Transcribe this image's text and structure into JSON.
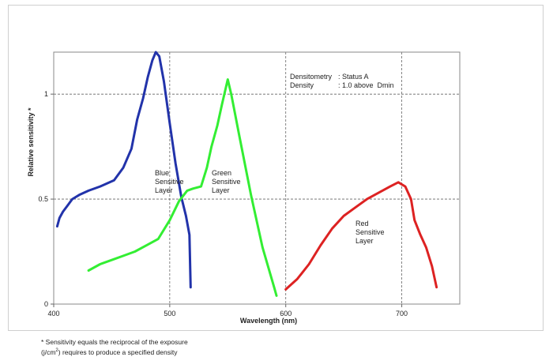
{
  "chart_data": {
    "type": "line",
    "xlabel": "Wavelength (nm)",
    "ylabel": "Relative sensitivity *",
    "xlim": [
      400,
      750
    ],
    "ylim": [
      0,
      1.2
    ],
    "x_ticks": [
      400,
      500,
      600,
      700
    ],
    "y_ticks": [
      0,
      0.5,
      1
    ],
    "y_tick_labels": [
      "0",
      "0.5",
      "1"
    ],
    "grid": "dashed at x=500,600,700 and y=0.5,1",
    "annotation": {
      "line1_label": "Densitometry",
      "line1_value": ": Status A",
      "line2_label": "Density",
      "line2_value": ": 1.0 above  Dmin"
    },
    "series": [
      {
        "label_lines": [
          "Blue",
          "Sensitive",
          "Layer"
        ],
        "color": "#2233aa",
        "points": [
          [
            403,
            0.37
          ],
          [
            405,
            0.41
          ],
          [
            408,
            0.44
          ],
          [
            412,
            0.47
          ],
          [
            416,
            0.5
          ],
          [
            422,
            0.52
          ],
          [
            430,
            0.54
          ],
          [
            440,
            0.56
          ],
          [
            452,
            0.59
          ],
          [
            460,
            0.65
          ],
          [
            467,
            0.74
          ],
          [
            472,
            0.88
          ],
          [
            477,
            0.98
          ],
          [
            481,
            1.08
          ],
          [
            485,
            1.16
          ],
          [
            488,
            1.2
          ],
          [
            491,
            1.18
          ],
          [
            495,
            1.06
          ],
          [
            500,
            0.86
          ],
          [
            505,
            0.67
          ],
          [
            510,
            0.51
          ],
          [
            514,
            0.42
          ],
          [
            517,
            0.33
          ],
          [
            518,
            0.08
          ]
        ]
      },
      {
        "label_lines": [
          "Green",
          "Sensitive",
          "Layer"
        ],
        "color": "#33ee33",
        "points": [
          [
            430,
            0.16
          ],
          [
            440,
            0.19
          ],
          [
            450,
            0.21
          ],
          [
            460,
            0.23
          ],
          [
            470,
            0.25
          ],
          [
            480,
            0.28
          ],
          [
            490,
            0.31
          ],
          [
            500,
            0.4
          ],
          [
            508,
            0.49
          ],
          [
            515,
            0.54
          ],
          [
            520,
            0.55
          ],
          [
            527,
            0.56
          ],
          [
            532,
            0.65
          ],
          [
            536,
            0.75
          ],
          [
            541,
            0.85
          ],
          [
            545,
            0.95
          ],
          [
            550,
            1.07
          ],
          [
            553,
            1.0
          ],
          [
            560,
            0.8
          ],
          [
            570,
            0.52
          ],
          [
            580,
            0.27
          ],
          [
            590,
            0.08
          ],
          [
            592,
            0.04
          ]
        ]
      },
      {
        "label_lines": [
          "Red",
          "Sensitive",
          "Layer"
        ],
        "color": "#dd2222",
        "points": [
          [
            600,
            0.07
          ],
          [
            610,
            0.12
          ],
          [
            620,
            0.19
          ],
          [
            630,
            0.28
          ],
          [
            640,
            0.36
          ],
          [
            650,
            0.42
          ],
          [
            660,
            0.46
          ],
          [
            670,
            0.5
          ],
          [
            680,
            0.53
          ],
          [
            690,
            0.56
          ],
          [
            697,
            0.58
          ],
          [
            703,
            0.56
          ],
          [
            708,
            0.5
          ],
          [
            711,
            0.4
          ],
          [
            716,
            0.33
          ],
          [
            721,
            0.27
          ],
          [
            726,
            0.18
          ],
          [
            730,
            0.08
          ]
        ]
      }
    ]
  },
  "footnote": {
    "line1": "* Sensitivity equals the reciprocal of the exposure",
    "line2_pre": "(j/cm",
    "line2_sup": "2",
    "line2_post": ") requires to produce a specified density"
  }
}
